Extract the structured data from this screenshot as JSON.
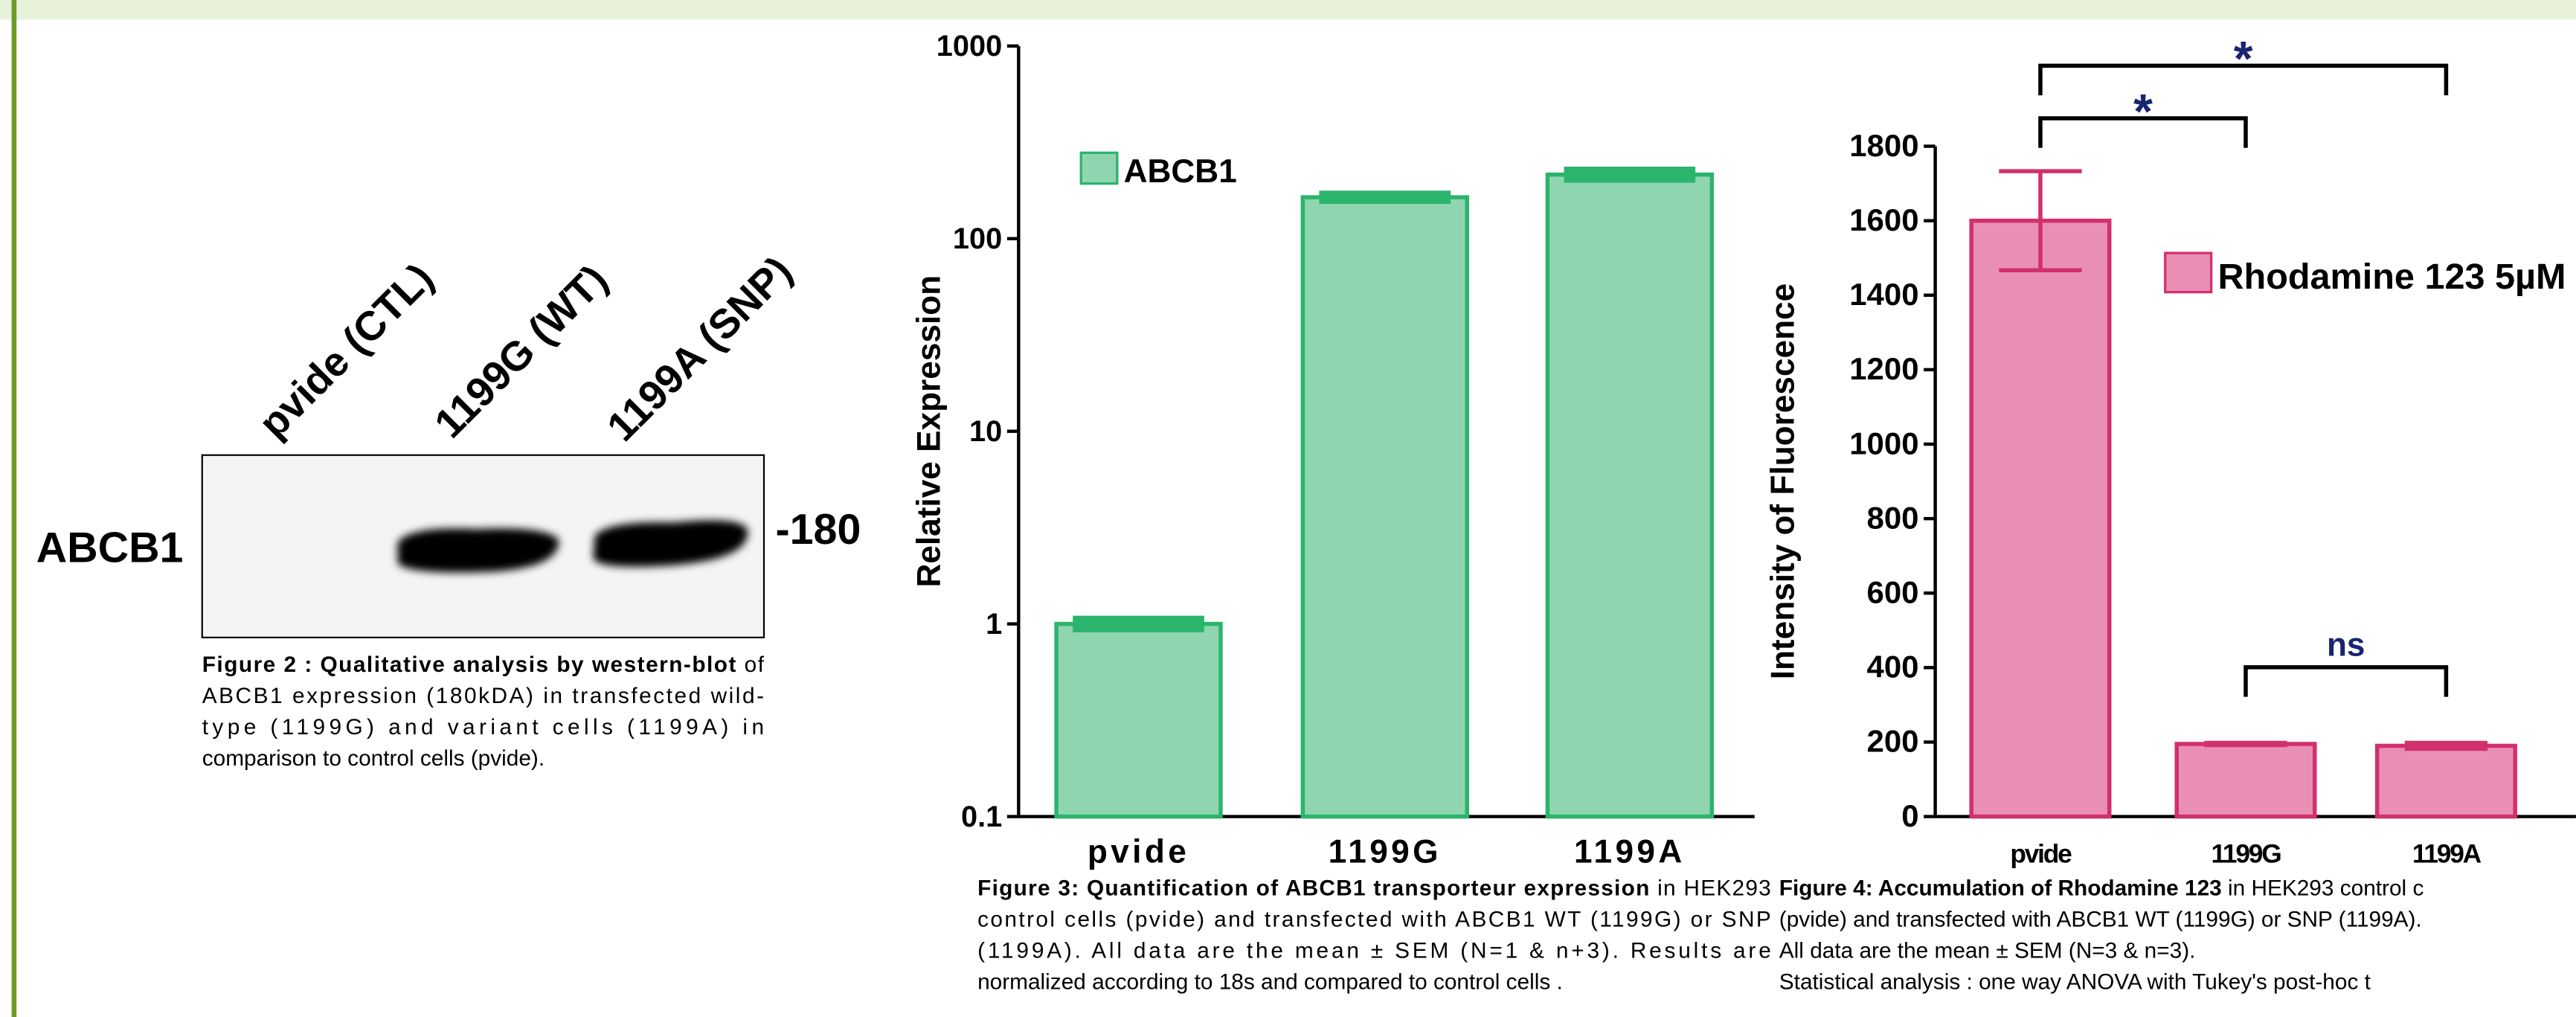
{
  "figure2": {
    "lanes": [
      "pvide (CTL)",
      "1199G (WT)",
      "1199A (SNP)"
    ],
    "protein": "ABCB1",
    "marker": "-180",
    "caption": {
      "bold": "Figure 2 : Qualitative analysis by western-blot",
      "lines": [
        " of",
        "ABCB1 expression (180kDA) in transfected wild-",
        "type (1199G) and variant cells (1199A) in",
        "comparison to control cells (pvide)."
      ]
    }
  },
  "chart_data": [
    {
      "type": "bar",
      "y_label": "Relative Expression",
      "yscale": "log",
      "ylim": [
        0.1,
        1000
      ],
      "yticks": [
        0.1,
        1,
        10,
        100,
        1000
      ],
      "categories": [
        "pvide",
        "1199G",
        "1199A"
      ],
      "series": [
        {
          "name": "ABCB1",
          "color": "#8fd6b0",
          "edge": "#2bb46c",
          "values": [
            1.0,
            164,
            215
          ],
          "errors": [
            0.05,
            5,
            10
          ]
        }
      ],
      "caption": {
        "bold": "Figure 3: Quantification of ABCB1 transporteur expression",
        "lines": [
          " in HEK293",
          "control cells (pvide) and transfected with ABCB1 WT (1199G) or SNP",
          "(1199A). All data are the mean ± SEM (N=1 & n+3). Results are",
          "normalized according to 18s and compared to  control cells ."
        ]
      }
    },
    {
      "type": "bar",
      "y_label": "Intensity of Fluorescence",
      "ylim": [
        0,
        1800
      ],
      "yticks": [
        0,
        200,
        400,
        600,
        800,
        1000,
        1200,
        1400,
        1600,
        1800
      ],
      "categories": [
        "pvide",
        "1199G",
        "1199A"
      ],
      "series": [
        {
          "name": "Rhodamine 123 5µM",
          "color": "#e98fb6",
          "edge": "#d2306d",
          "values": [
            1600,
            195,
            190
          ],
          "errors": [
            133,
            3,
            8
          ]
        }
      ],
      "annotations": [
        {
          "text": "*",
          "from": 0,
          "to": 2
        },
        {
          "text": "*",
          "from": 0,
          "to": 1
        },
        {
          "text": "ns",
          "from": 1,
          "to": 2
        }
      ],
      "caption": {
        "bold": "Figure 4: Accumulation of Rhodamine 123",
        "lines": [
          " in HEK293 control c",
          "(pvide) and transfected with ABCB1 WT (1199G) or SNP (1199A).",
          "All data are the mean ± SEM (N=3 & n=3).",
          "Statistical analysis : one way ANOVA with Tukey's post-hoc t"
        ]
      }
    }
  ]
}
